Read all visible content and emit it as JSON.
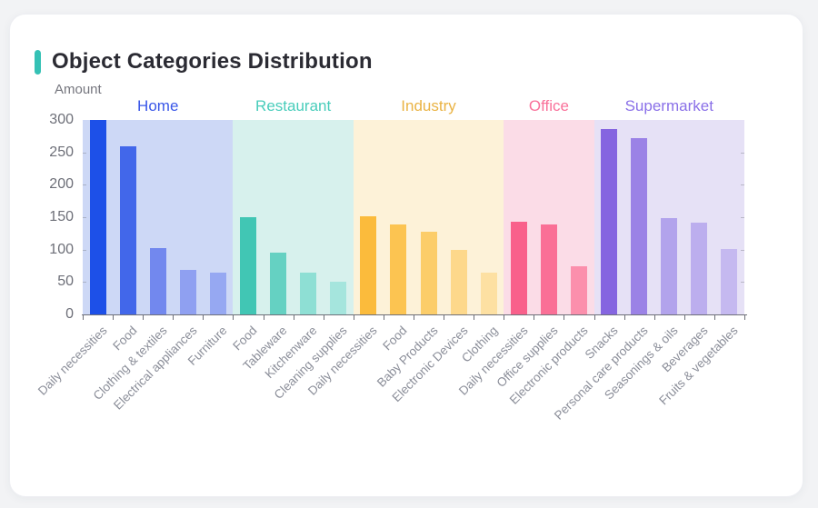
{
  "page": {
    "background": "#f2f3f5"
  },
  "card": {
    "title": "Object Categories Distribution",
    "accent_color": "#35c1b5"
  },
  "chart_data": {
    "type": "bar",
    "title": "Object Categories Distribution",
    "ylabel": "Amount",
    "xlabel": "",
    "ylim": [
      0,
      300
    ],
    "yticks": [
      0,
      50,
      100,
      150,
      200,
      250,
      300
    ],
    "grid": false,
    "legend_position": "group-labels-above-bands",
    "axis_color": "#6e7079",
    "tick_label_color": "#8b8e99",
    "groups": [
      {
        "name": "Home",
        "label_color": "#3a57e8",
        "band_color": "#cdd8f6",
        "categories": [
          "Daily necessities",
          "Food",
          "Clothing & textiles",
          "Electrical appliances",
          "Furniture"
        ],
        "values": [
          300,
          259,
          103,
          68,
          64
        ],
        "bar_colors": [
          "#1d50e8",
          "#4267ea",
          "#7288ee",
          "#8fa0f1",
          "#96a8f2"
        ]
      },
      {
        "name": "Restaurant",
        "label_color": "#49cdbb",
        "band_color": "#d7f1ed",
        "categories": [
          "Food",
          "Tableware",
          "Kitchenware",
          "Cleaning supplies"
        ],
        "values": [
          150,
          96,
          65,
          50
        ],
        "bar_colors": [
          "#41c6b4",
          "#65d1c2",
          "#8edfd4",
          "#a5e5dd"
        ]
      },
      {
        "name": "Industry",
        "label_color": "#eab344",
        "band_color": "#fdf2d8",
        "categories": [
          "Daily necessities",
          "Food",
          "Baby Products",
          "Electronic Devices",
          "Clothing"
        ],
        "values": [
          151,
          139,
          127,
          99,
          64
        ],
        "bar_colors": [
          "#fbbb3c",
          "#fcc451",
          "#fccd69",
          "#fdd88b",
          "#fde0a2"
        ]
      },
      {
        "name": "Office",
        "label_color": "#f9719a",
        "band_color": "#fbdce7",
        "categories": [
          "Daily necessities",
          "Office supplies",
          "Electronic products"
        ],
        "values": [
          143,
          139,
          75
        ],
        "bar_colors": [
          "#f9608b",
          "#fa6f96",
          "#fb8fac"
        ]
      },
      {
        "name": "Supermarket",
        "label_color": "#8a70e8",
        "band_color": "#e6e1f6",
        "categories": [
          "Snacks",
          "Personal care products",
          "Seasonings & oils",
          "Beverages",
          "Fruits & vegetables"
        ],
        "values": [
          286,
          272,
          149,
          141,
          101
        ],
        "bar_colors": [
          "#8565e0",
          "#9b82e6",
          "#b2a3ec",
          "#bcaeee",
          "#c5b9f0"
        ]
      }
    ]
  }
}
